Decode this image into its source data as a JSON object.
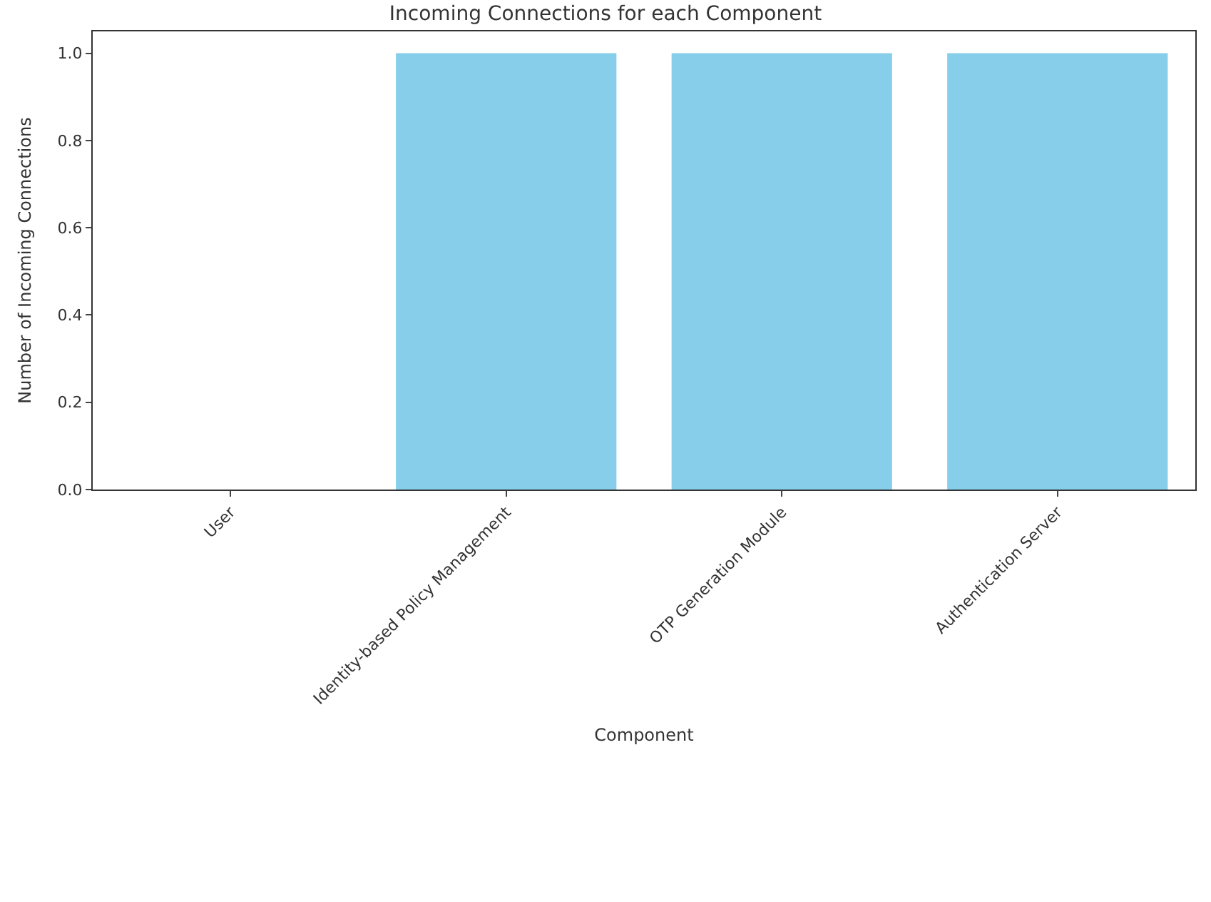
{
  "chart_data": {
    "type": "bar",
    "title": "Incoming Connections for each Component",
    "xlabel": "Component",
    "ylabel": "Number of Incoming Connections",
    "categories": [
      "User",
      "Identity-based Policy Management",
      "OTP Generation Module",
      "Authentication Server"
    ],
    "values": [
      0,
      1,
      1,
      1
    ],
    "color": "#87ceeb",
    "ylim": [
      0,
      1.05
    ],
    "yticks": [
      {
        "value": 0,
        "label": "0.0"
      },
      {
        "value": 0.2,
        "label": "0.2"
      },
      {
        "value": 0.4,
        "label": "0.4"
      },
      {
        "value": 0.6,
        "label": "0.6"
      },
      {
        "value": 0.8,
        "label": "0.8"
      },
      {
        "value": 1,
        "label": "1.0"
      }
    ]
  }
}
